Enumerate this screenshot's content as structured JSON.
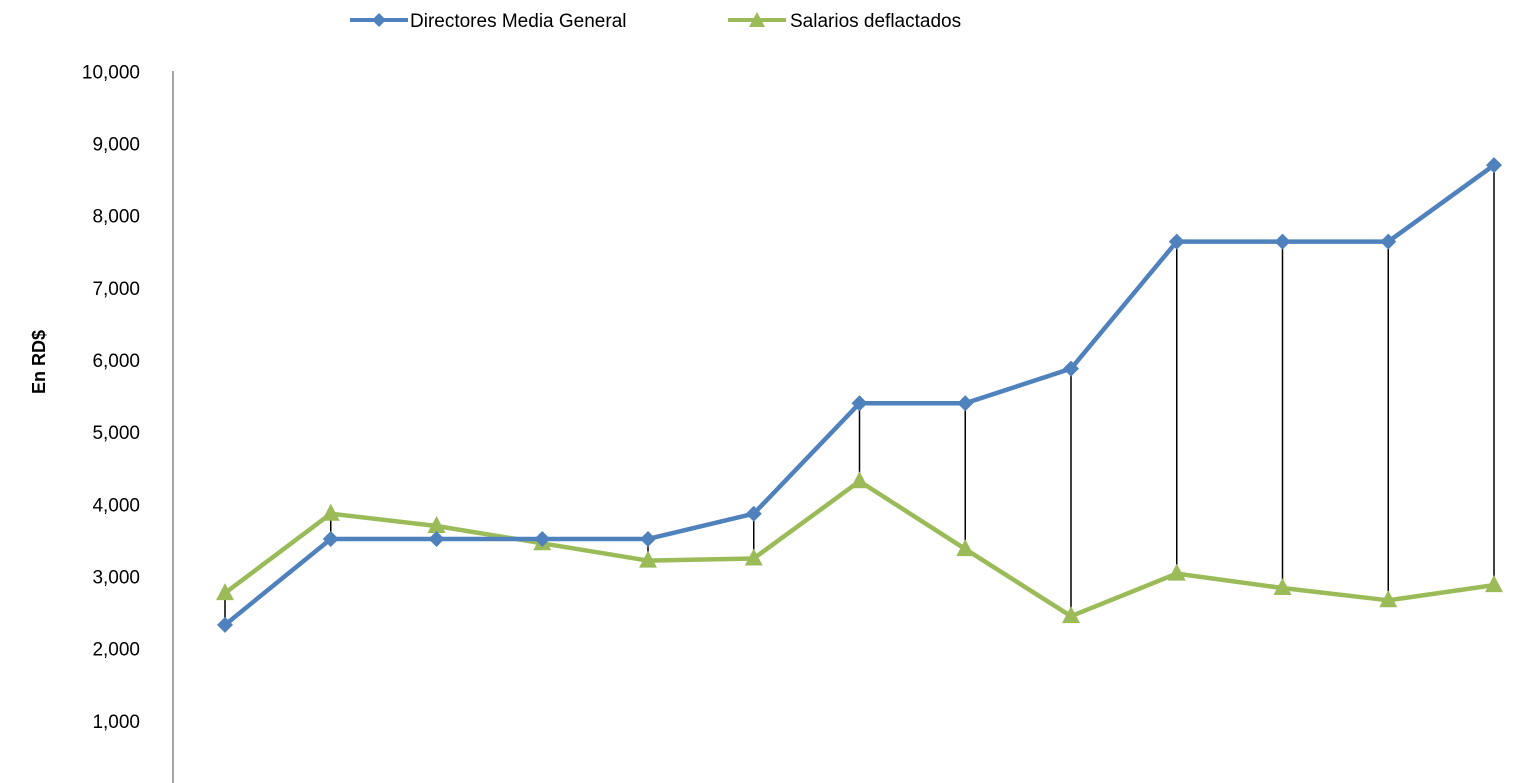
{
  "chart_data": {
    "type": "line",
    "ylabel": "En RD$",
    "xlabel": "",
    "ylim": [
      0,
      10000
    ],
    "yticks": [
      1000,
      2000,
      3000,
      4000,
      5000,
      6000,
      7000,
      8000,
      9000,
      10000
    ],
    "ytick_labels": [
      "1,000",
      "2,000",
      "3,000",
      "4,000",
      "5,000",
      "6,000",
      "7,000",
      "8,000",
      "9,000",
      "10,000"
    ],
    "grid": false,
    "legend_position": "top",
    "drop_lines": true,
    "point_count": 13,
    "series": [
      {
        "name": "Directores Media General",
        "color": "#4F81BD",
        "marker": "diamond",
        "values": [
          2330,
          3520,
          3520,
          3520,
          3520,
          3870,
          5400,
          5400,
          5880,
          7640,
          7640,
          7640,
          8700
        ]
      },
      {
        "name": "Salarios deflactados",
        "color": "#9BBB59",
        "marker": "triangle",
        "values": [
          2770,
          3870,
          3700,
          3460,
          3220,
          3250,
          4320,
          3380,
          2450,
          3040,
          2840,
          2670,
          2880
        ]
      }
    ]
  }
}
